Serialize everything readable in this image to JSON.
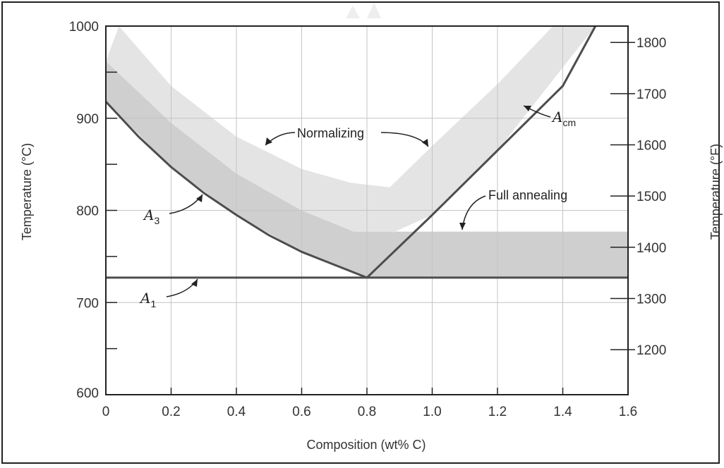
{
  "chart_data": {
    "type": "area",
    "xlabel": "Composition (wt% C)",
    "ylabel": "Temperature (°C)",
    "ylabel_right": "Temperature (°F)",
    "xlim": [
      0,
      1.6
    ],
    "ylim": [
      600,
      1000
    ],
    "ylim_right_F": [
      1112,
      1832
    ],
    "grid": true,
    "x_ticks": [
      "0",
      "0.2",
      "0.4",
      "0.6",
      "0.8",
      "1.0",
      "1.2",
      "1.4",
      "1.6"
    ],
    "y_ticks": [
      "600",
      "700",
      "800",
      "900",
      "1000"
    ],
    "y_right_ticks": [
      "1200",
      "1300",
      "1400",
      "1500",
      "1600",
      "1700",
      "1800"
    ],
    "lines": [
      {
        "name": "A1",
        "x": [
          0,
          1.6
        ],
        "y": [
          727,
          727
        ]
      },
      {
        "name": "A3",
        "x": [
          0,
          0.1,
          0.2,
          0.3,
          0.4,
          0.5,
          0.6,
          0.7,
          0.8
        ],
        "y": [
          918,
          880,
          847,
          819,
          795,
          773,
          755,
          741,
          727
        ]
      },
      {
        "name": "Acm",
        "x": [
          0.8,
          1.0,
          1.2,
          1.4,
          1.5
        ],
        "y": [
          727,
          795,
          865,
          935,
          1000
        ]
      }
    ],
    "regions": [
      {
        "name": "Full annealing",
        "upper": {
          "x": [
            0,
            0.2,
            0.4,
            0.6,
            0.76,
            1.6
          ],
          "y": [
            962,
            895,
            840,
            800,
            777,
            777
          ]
        },
        "lower": {
          "x": [
            0,
            0.2,
            0.4,
            0.6,
            0.8,
            1.6
          ],
          "y": [
            918,
            847,
            795,
            755,
            727,
            727
          ]
        }
      },
      {
        "name": "Normalizing",
        "upper": {
          "x": [
            0.04,
            0.2,
            0.4,
            0.6,
            0.75,
            0.87,
            1.0,
            1.2,
            1.37
          ],
          "y": [
            1000,
            935,
            880,
            845,
            830,
            825,
            870,
            937,
            1000
          ]
        },
        "lower": {
          "x": [
            0,
            0.2,
            0.4,
            0.6,
            0.76,
            0.87,
            0.88,
            1.0,
            1.2,
            1.5
          ],
          "y": [
            962,
            895,
            840,
            800,
            777,
            777,
            776,
            795,
            865,
            1000
          ]
        }
      }
    ],
    "annotations": [
      {
        "text": "Normalizing"
      },
      {
        "text": "Full annealing"
      },
      {
        "text": "A",
        "sub": "3"
      },
      {
        "text": "A",
        "sub": "1"
      },
      {
        "text": "A",
        "sub": "cm"
      }
    ],
    "colors": {
      "full_annealing": "#cfcfcf",
      "normalizing": "#e4e4e4",
      "line": "#4d4d4d",
      "grid": "#c4c4c4"
    }
  }
}
